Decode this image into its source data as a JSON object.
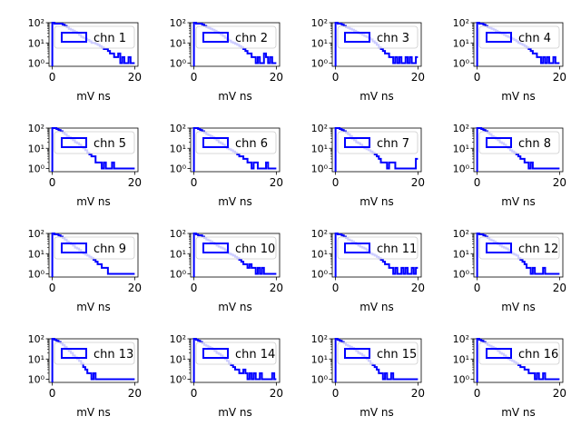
{
  "figure": {
    "shared": {
      "type": "histogram-step",
      "xlabel": "mV ns",
      "x_ticks": [
        "0",
        "20"
      ],
      "y_ticks": [
        "10⁰",
        "10¹",
        "10²"
      ],
      "y_scale": "log",
      "xlim": [
        -0.8,
        20.8
      ],
      "ylim": [
        0.7,
        100
      ],
      "bin_width": 0.5,
      "legend_placement": "upper-right",
      "colors": {
        "line": "#0000ff",
        "legend_fill": "#ffffff",
        "legend_edge": "#cccccc"
      }
    }
  },
  "chart_data": [
    {
      "type": "histogram-step",
      "legend": "chn 1",
      "bins_start": 0,
      "bin_width": 0.5,
      "counts": [
        100,
        90,
        90,
        90,
        90,
        80,
        70,
        60,
        50,
        45,
        40,
        35,
        30,
        25,
        20,
        18,
        16,
        14,
        12,
        10,
        10,
        9,
        8,
        7,
        6,
        5,
        5,
        4,
        3,
        3,
        2,
        2,
        3,
        1,
        2,
        1,
        1,
        2,
        1,
        1
      ]
    },
    {
      "type": "histogram-step",
      "legend": "chn 2",
      "bins_start": 0,
      "bin_width": 0.5,
      "counts": [
        100,
        90,
        90,
        90,
        80,
        70,
        60,
        55,
        50,
        45,
        40,
        35,
        30,
        26,
        22,
        18,
        15,
        13,
        11,
        10,
        9,
        8,
        7,
        6,
        5,
        4,
        3,
        3,
        2,
        2,
        1,
        2,
        1,
        1,
        3,
        2,
        1,
        2,
        1,
        1
      ]
    },
    {
      "type": "histogram-step",
      "legend": "chn 3",
      "bins_start": 0,
      "bin_width": 0.5,
      "counts": [
        100,
        90,
        90,
        80,
        70,
        60,
        55,
        50,
        45,
        40,
        35,
        30,
        28,
        25,
        22,
        20,
        18,
        15,
        12,
        10,
        8,
        6,
        5,
        4,
        3,
        3,
        2,
        2,
        1,
        2,
        1,
        2,
        1,
        1,
        2,
        1,
        2,
        1,
        1,
        2
      ]
    },
    {
      "type": "histogram-step",
      "legend": "chn 4",
      "bins_start": 0,
      "bin_width": 0.5,
      "counts": [
        100,
        90,
        90,
        80,
        70,
        60,
        55,
        50,
        45,
        40,
        35,
        30,
        28,
        25,
        22,
        20,
        18,
        16,
        14,
        12,
        10,
        9,
        8,
        7,
        6,
        5,
        4,
        3,
        3,
        2,
        2,
        1,
        2,
        1,
        2,
        1,
        1,
        2,
        1,
        1
      ]
    },
    {
      "type": "histogram-step",
      "legend": "chn 5",
      "bins_start": 0,
      "bin_width": 0.5,
      "counts": [
        100,
        100,
        90,
        80,
        70,
        60,
        50,
        40,
        35,
        30,
        25,
        20,
        18,
        15,
        12,
        10,
        8,
        6,
        5,
        4,
        4,
        2,
        2,
        2,
        1,
        2,
        1,
        1,
        1,
        2,
        1,
        1,
        1,
        1,
        1,
        1,
        1,
        1,
        1,
        1
      ]
    },
    {
      "type": "histogram-step",
      "legend": "chn 6",
      "bins_start": 0,
      "bin_width": 0.5,
      "counts": [
        100,
        100,
        90,
        80,
        70,
        60,
        50,
        45,
        40,
        35,
        30,
        25,
        20,
        18,
        15,
        12,
        10,
        9,
        8,
        7,
        6,
        5,
        4,
        4,
        3,
        3,
        2,
        2,
        1,
        2,
        2,
        1,
        1,
        1,
        1,
        2,
        1,
        1,
        1,
        1
      ]
    },
    {
      "type": "histogram-step",
      "legend": "chn 7",
      "bins_start": 0,
      "bin_width": 0.5,
      "counts": [
        100,
        100,
        90,
        80,
        70,
        60,
        50,
        40,
        30,
        25,
        20,
        18,
        15,
        12,
        10,
        9,
        8,
        7,
        6,
        5,
        4,
        3,
        2,
        2,
        2,
        1,
        2,
        2,
        2,
        1,
        1,
        1,
        1,
        1,
        1,
        1,
        1,
        1,
        1,
        3
      ]
    },
    {
      "type": "histogram-step",
      "legend": "chn 8",
      "bins_start": 0,
      "bin_width": 0.5,
      "counts": [
        100,
        100,
        90,
        80,
        70,
        60,
        50,
        40,
        35,
        30,
        25,
        20,
        18,
        15,
        12,
        10,
        8,
        7,
        6,
        5,
        4,
        3,
        3,
        2,
        2,
        1,
        2,
        1,
        1,
        1,
        1,
        1,
        1,
        1,
        1,
        1,
        1,
        1,
        1,
        1
      ]
    },
    {
      "type": "histogram-step",
      "legend": "chn 9",
      "bins_start": 0,
      "bin_width": 0.5,
      "counts": [
        100,
        90,
        90,
        80,
        70,
        60,
        50,
        40,
        35,
        30,
        25,
        20,
        18,
        15,
        12,
        10,
        9,
        8,
        7,
        6,
        5,
        4,
        3,
        3,
        2,
        2,
        2,
        1,
        1,
        1,
        1,
        1,
        1,
        1,
        1,
        1,
        1,
        1,
        1,
        1
      ]
    },
    {
      "type": "histogram-step",
      "legend": "chn 10",
      "bins_start": 0,
      "bin_width": 0.5,
      "counts": [
        100,
        90,
        80,
        80,
        70,
        60,
        50,
        45,
        40,
        35,
        30,
        25,
        22,
        20,
        18,
        15,
        12,
        10,
        9,
        8,
        7,
        6,
        5,
        4,
        3,
        3,
        2,
        3,
        2,
        2,
        1,
        2,
        1,
        2,
        1,
        1,
        1,
        1,
        1,
        1
      ]
    },
    {
      "type": "histogram-step",
      "legend": "chn 11",
      "bins_start": 0,
      "bin_width": 0.5,
      "counts": [
        100,
        90,
        90,
        80,
        70,
        60,
        50,
        45,
        40,
        35,
        30,
        25,
        22,
        20,
        18,
        15,
        12,
        10,
        9,
        8,
        7,
        6,
        5,
        4,
        3,
        3,
        2,
        2,
        1,
        2,
        1,
        1,
        2,
        1,
        2,
        1,
        1,
        2,
        1,
        2
      ]
    },
    {
      "type": "histogram-step",
      "legend": "chn 12",
      "bins_start": 0,
      "bin_width": 0.5,
      "counts": [
        100,
        90,
        90,
        80,
        70,
        60,
        50,
        45,
        40,
        35,
        30,
        25,
        22,
        20,
        18,
        15,
        12,
        10,
        9,
        8,
        6,
        5,
        4,
        3,
        2,
        2,
        1,
        2,
        1,
        1,
        1,
        1,
        2,
        1,
        1,
        1,
        1,
        1,
        1,
        1
      ]
    },
    {
      "type": "histogram-step",
      "legend": "chn 13",
      "bins_start": 0,
      "bin_width": 0.5,
      "counts": [
        100,
        90,
        80,
        70,
        60,
        50,
        40,
        30,
        25,
        20,
        15,
        12,
        10,
        8,
        6,
        4,
        3,
        2,
        2,
        1,
        2,
        1,
        1,
        1,
        1,
        1,
        1,
        1,
        1,
        1,
        1,
        1,
        1,
        1,
        1,
        1,
        1,
        1,
        1,
        1
      ]
    },
    {
      "type": "histogram-step",
      "legend": "chn 14",
      "bins_start": 0,
      "bin_width": 0.5,
      "counts": [
        100,
        90,
        80,
        70,
        60,
        50,
        45,
        40,
        35,
        30,
        25,
        20,
        18,
        15,
        12,
        10,
        8,
        6,
        5,
        4,
        3,
        3,
        2,
        2,
        3,
        2,
        1,
        2,
        1,
        2,
        1,
        1,
        2,
        1,
        1,
        1,
        1,
        1,
        2,
        1
      ]
    },
    {
      "type": "histogram-step",
      "legend": "chn 15",
      "bins_start": 0,
      "bin_width": 0.5,
      "counts": [
        100,
        90,
        80,
        70,
        60,
        50,
        45,
        40,
        35,
        30,
        25,
        20,
        18,
        15,
        12,
        10,
        8,
        6,
        5,
        4,
        3,
        2,
        2,
        1,
        2,
        1,
        1,
        2,
        1,
        1,
        1,
        1,
        1,
        1,
        1,
        1,
        1,
        1,
        1,
        1
      ]
    },
    {
      "type": "histogram-step",
      "legend": "chn 16",
      "bins_start": 0,
      "bin_width": 0.5,
      "counts": [
        100,
        90,
        80,
        70,
        60,
        50,
        45,
        40,
        35,
        30,
        25,
        20,
        18,
        15,
        12,
        10,
        9,
        8,
        7,
        6,
        5,
        4,
        4,
        3,
        3,
        2,
        2,
        2,
        1,
        2,
        1,
        1,
        2,
        1,
        1,
        1,
        1,
        1,
        1,
        1
      ]
    }
  ]
}
